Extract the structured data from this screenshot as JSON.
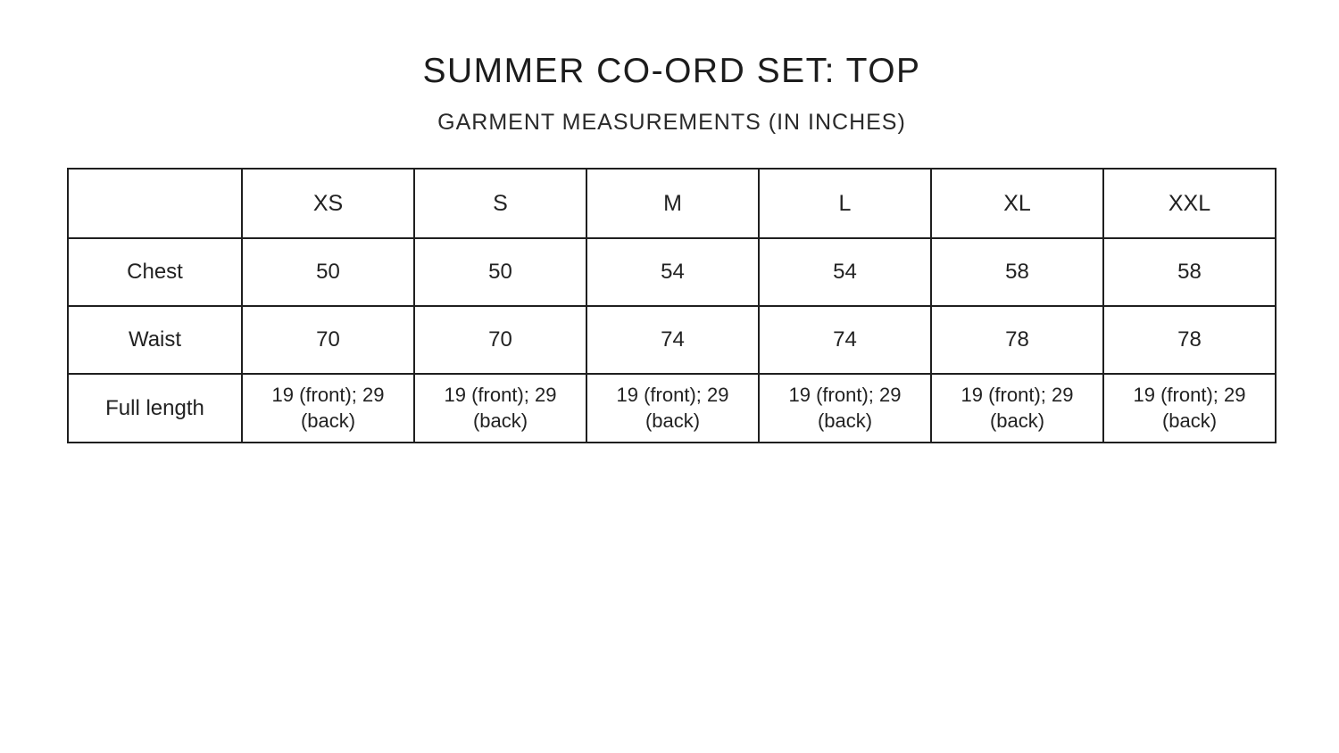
{
  "page": {
    "title": "SUMMER CO-ORD SET: TOP",
    "subtitle": "GARMENT MEASUREMENTS (IN INCHES)"
  },
  "colors": {
    "background": "#ffffff",
    "text": "#222222",
    "border": "#1f1f1f"
  },
  "table": {
    "corner_label": "",
    "sizes": [
      "XS",
      "S",
      "M",
      "L",
      "XL",
      "XXL"
    ],
    "rows": [
      {
        "label": "Chest",
        "values": [
          "50",
          "50",
          "54",
          "54",
          "58",
          "58"
        ]
      },
      {
        "label": "Waist",
        "values": [
          "70",
          "70",
          "74",
          "74",
          "78",
          "78"
        ]
      },
      {
        "label": "Full length",
        "values": [
          "19 (front); 29 (back)",
          "19 (front); 29 (back)",
          "19 (front); 29 (back)",
          "19 (front); 29 (back)",
          "19 (front); 29 (back)",
          "19 (front); 29 (back)"
        ]
      }
    ]
  }
}
